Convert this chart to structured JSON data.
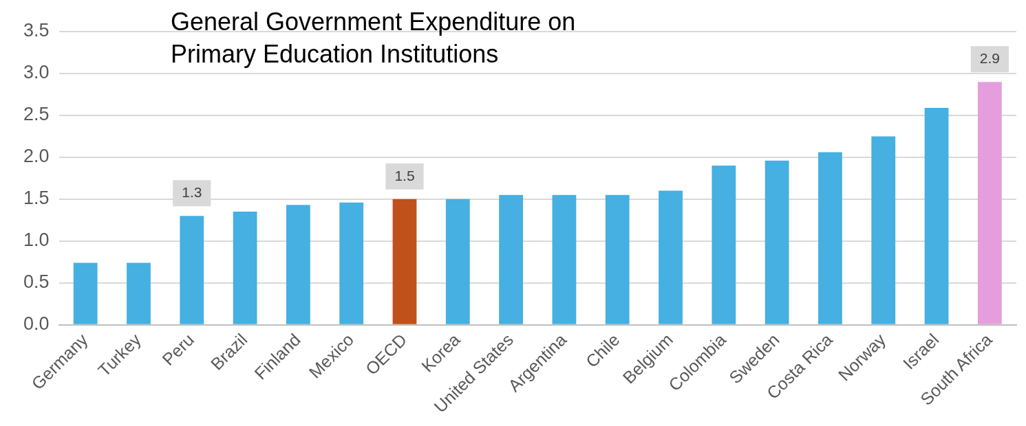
{
  "chart_data": {
    "type": "bar",
    "title": "General Government Expenditure on\nPrimary Education Institutions",
    "categories": [
      "Germany",
      "Turkey",
      "Peru",
      "Brazil",
      "Finland",
      "Mexico",
      "OECD",
      "Korea",
      "United States",
      "Argentina",
      "Chile",
      "Belgium",
      "Colombia",
      "Sweden",
      "Costa Rica",
      "Norway",
      "Israel",
      "South Africa"
    ],
    "values": [
      0.74,
      0.74,
      1.3,
      1.35,
      1.43,
      1.46,
      1.5,
      1.5,
      1.55,
      1.55,
      1.55,
      1.6,
      1.9,
      1.96,
      2.06,
      2.25,
      2.59,
      2.9
    ],
    "colors": [
      "#45b0e1",
      "#45b0e1",
      "#45b0e1",
      "#45b0e1",
      "#45b0e1",
      "#45b0e1",
      "#c0511a",
      "#45b0e1",
      "#45b0e1",
      "#45b0e1",
      "#45b0e1",
      "#45b0e1",
      "#45b0e1",
      "#45b0e1",
      "#45b0e1",
      "#45b0e1",
      "#45b0e1",
      "#e59edd"
    ],
    "value_labels": [
      null,
      null,
      "1.3",
      null,
      null,
      null,
      "1.5",
      null,
      null,
      null,
      null,
      null,
      null,
      null,
      null,
      null,
      null,
      "2.9"
    ],
    "ylim": [
      0,
      3.5
    ],
    "yticks": [
      {
        "value": 0,
        "label": "0.0"
      },
      {
        "value": 0.5,
        "label": "0.5"
      },
      {
        "value": 1,
        "label": "1.0"
      },
      {
        "value": 1.5,
        "label": "1.5"
      },
      {
        "value": 2,
        "label": "2.0"
      },
      {
        "value": 2.5,
        "label": "2.5"
      },
      {
        "value": 3,
        "label": "3.0"
      },
      {
        "value": 3.5,
        "label": "3.5"
      }
    ],
    "grid": "y",
    "legend": false
  }
}
